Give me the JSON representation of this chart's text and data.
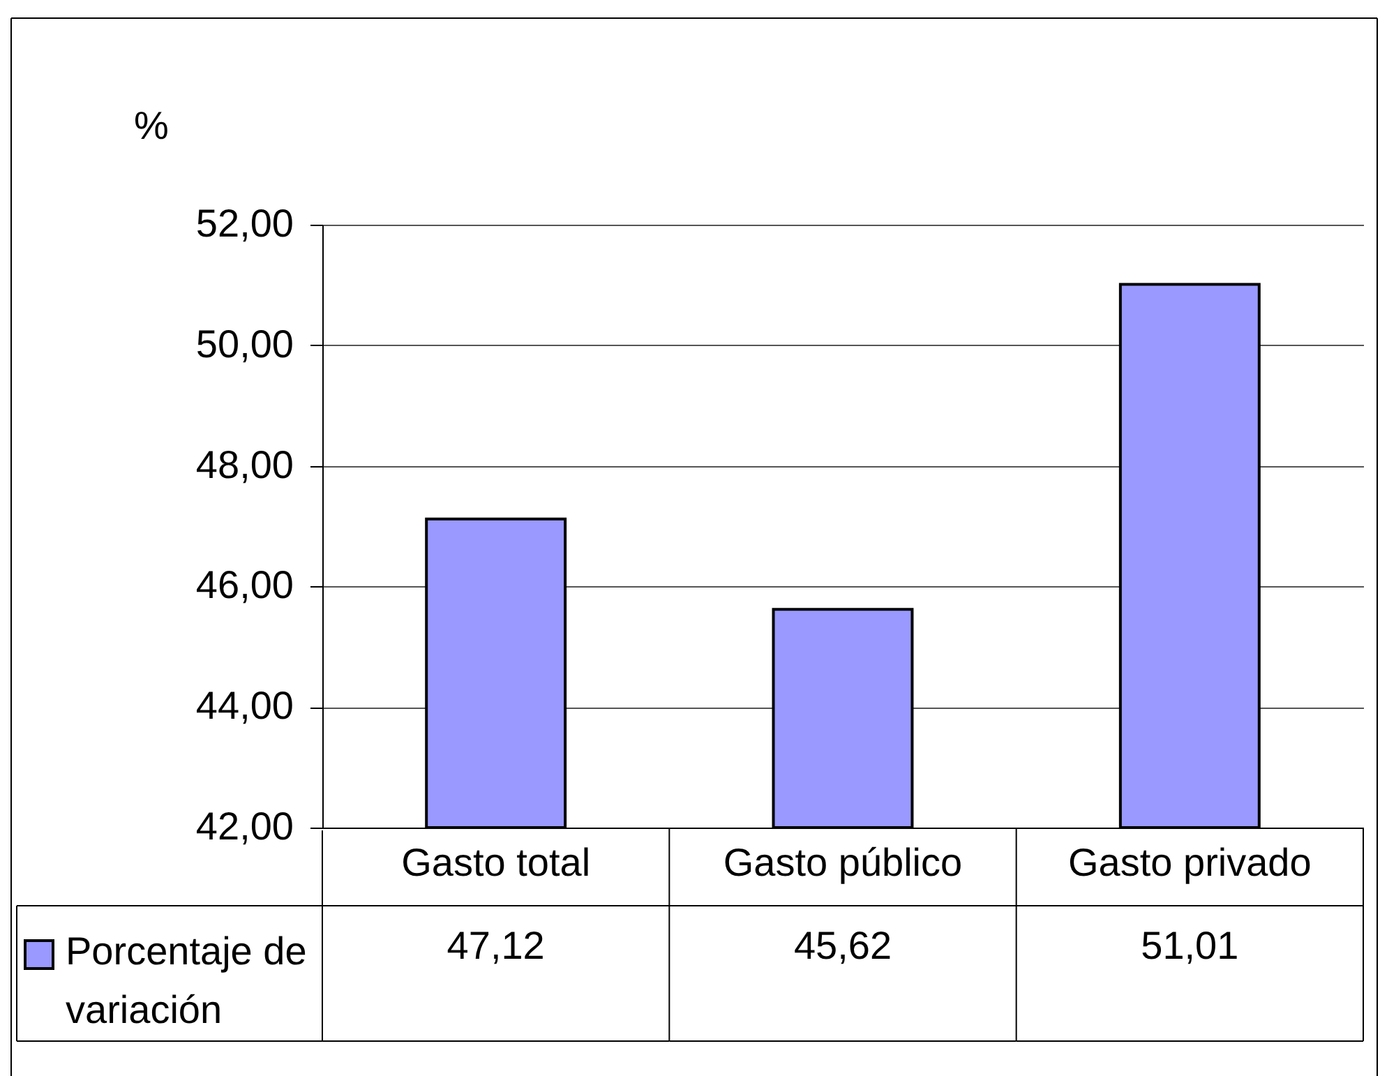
{
  "chart_data": {
    "type": "bar",
    "ylabel": "%",
    "categories": [
      "Gasto total",
      "Gasto público",
      "Gasto privado"
    ],
    "series": [
      {
        "name": "Porcentaje de variación",
        "color": "#9999ff",
        "values": [
          47.12,
          45.62,
          51.01
        ],
        "value_labels": [
          "47,12",
          "45,62",
          "51,01"
        ]
      }
    ],
    "ylim": [
      42,
      52
    ],
    "yticks": [
      {
        "value": 42,
        "label": "42,00"
      },
      {
        "value": 44,
        "label": "44,00"
      },
      {
        "value": 46,
        "label": "46,00"
      },
      {
        "value": 48,
        "label": "48,00"
      },
      {
        "value": 50,
        "label": "50,00"
      },
      {
        "value": 52,
        "label": "52,00"
      }
    ],
    "grid": "y",
    "legend": "bottom left"
  }
}
